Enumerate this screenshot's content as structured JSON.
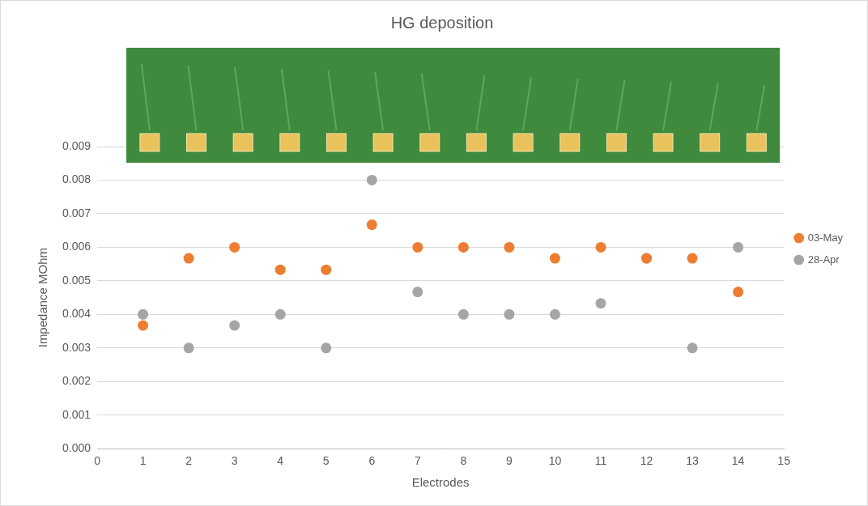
{
  "chart_data": {
    "type": "scatter",
    "title": "HG deposition",
    "x_label": "Electrodes",
    "y_label": "Impedance MOhm",
    "x": [
      1,
      2,
      3,
      4,
      5,
      6,
      7,
      8,
      9,
      10,
      11,
      12,
      13,
      14
    ],
    "series": [
      {
        "name": "03-May",
        "color": "#ed7d31",
        "marker": "circle",
        "values": [
          0.00367,
          0.00567,
          0.006,
          0.00533,
          0.00533,
          0.00667,
          0.006,
          0.006,
          0.006,
          0.00567,
          0.006,
          0.00567,
          0.00567,
          0.00467
        ]
      },
      {
        "name": "28-Apr",
        "color": "#a5a5a5",
        "marker": "circle",
        "values": [
          0.004,
          0.003,
          0.00367,
          0.004,
          0.003,
          0.008,
          0.00467,
          0.004,
          0.004,
          0.004,
          0.00433,
          0.00567,
          0.003,
          0.006
        ]
      }
    ],
    "xlim": [
      0,
      15
    ],
    "xticks": [
      0,
      1,
      2,
      3,
      4,
      5,
      6,
      7,
      8,
      9,
      10,
      11,
      12,
      13,
      14,
      15
    ],
    "ylim": [
      0,
      0.009
    ],
    "yticks": [
      {
        "value": 0,
        "label": "0.000"
      },
      0.001,
      0.002,
      0.003,
      0.004,
      0.005,
      0.006,
      0.007,
      0.008,
      0.009
    ],
    "grid": "y",
    "legend": "right"
  }
}
